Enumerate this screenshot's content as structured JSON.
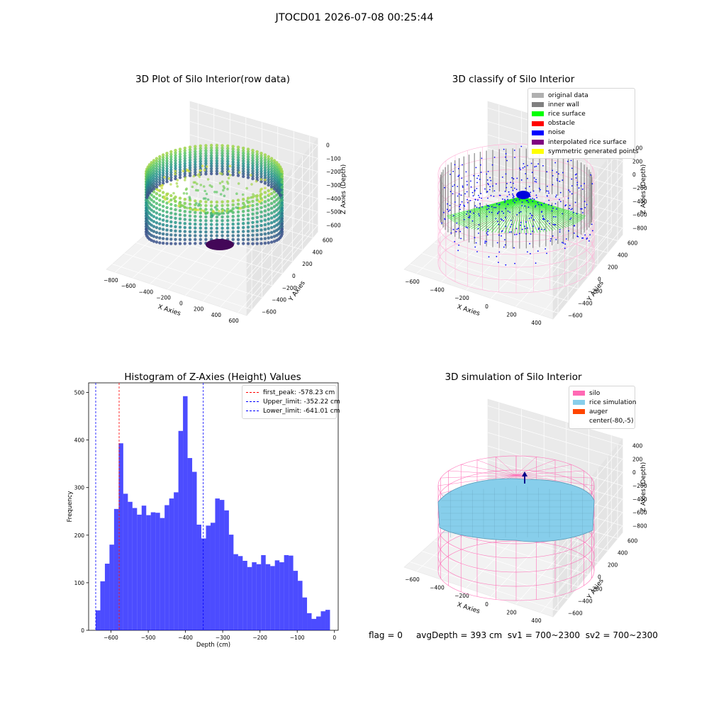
{
  "suptitle": "JTOCD01 2026-07-08 00:25:44",
  "chart_data": [
    {
      "type": "scatter",
      "title": "3D Plot of Silo Interior(row data)",
      "xlabel": "X Axies",
      "ylabel": "Y Axies",
      "zlabel": "Z Axies (Depth)",
      "x_ticks": [
        "−800",
        "−600",
        "−400",
        "−200",
        "0",
        "200",
        "400",
        "600"
      ],
      "y_ticks": [
        "−600",
        "−400",
        "−200",
        "0",
        "200",
        "400",
        "600"
      ],
      "z_ticks": [
        "0",
        "−100",
        "−200",
        "−300",
        "−400",
        "−500",
        "−600"
      ],
      "grid": true,
      "colormap": "viridis"
    },
    {
      "type": "scatter",
      "title": "3D classify of Silo Interior",
      "xlabel": "X Axies",
      "ylabel": "Y Axies",
      "zlabel": "Z Axies (Depth)",
      "x_ticks": [
        "−600",
        "−400",
        "−200",
        "0",
        "200",
        "400"
      ],
      "y_ticks": [
        "−600",
        "−400",
        "−200",
        "0",
        "200",
        "400",
        "600"
      ],
      "z_ticks": [
        "400",
        "200",
        "0",
        "−200",
        "−400",
        "−600",
        "−800"
      ],
      "grid": true,
      "legend_position": "top-right",
      "legend": [
        {
          "label": "original data",
          "color": "#b0b0b0"
        },
        {
          "label": "inner wall",
          "color": "#808080"
        },
        {
          "label": "rice surface",
          "color": "#00ff00"
        },
        {
          "label": "obstacle",
          "color": "#ff0000"
        },
        {
          "label": "noise",
          "color": "#0000ff"
        },
        {
          "label": "interpolated rice surface",
          "color": "#800080"
        },
        {
          "label": "symmetric generated points",
          "color": "#ffff00"
        }
      ]
    },
    {
      "type": "bar",
      "title": "Histogram of Z-Axies (Height) Values",
      "xlabel": "Depth (cm)",
      "ylabel": "Frequency",
      "xlim": [
        -660,
        10
      ],
      "ylim": [
        0,
        520
      ],
      "x_ticks": [
        -600,
        -500,
        -400,
        -300,
        -200,
        -100,
        0
      ],
      "y_ticks": [
        0,
        100,
        200,
        300,
        400,
        500
      ],
      "tick_labels_x": [
        "−600",
        "−500",
        "−400",
        "−300",
        "−200",
        "−100",
        "0"
      ],
      "tick_labels_y": [
        "0",
        "100",
        "200",
        "300",
        "400",
        "500"
      ],
      "bin_range": [
        -641.01,
        -12.0
      ],
      "bar_color": "#0000ff",
      "values": [
        42,
        103,
        140,
        180,
        255,
        393,
        287,
        270,
        257,
        243,
        262,
        242,
        248,
        247,
        236,
        263,
        277,
        290,
        419,
        492,
        362,
        333,
        222,
        193,
        220,
        226,
        277,
        274,
        252,
        201,
        160,
        156,
        146,
        133,
        143,
        139,
        158,
        139,
        135,
        147,
        143,
        158,
        157,
        125,
        104,
        69,
        36,
        24,
        29,
        40,
        43
      ],
      "legend_position": "top-right",
      "lines": [
        {
          "label": "first_peak: -578.23 cm",
          "x": -578.23,
          "color": "#ff0000"
        },
        {
          "label": "Upper_limit: -352.22 cm",
          "x": -352.22,
          "color": "#0000ff"
        },
        {
          "label": "Lower_limit: -641.01 cm",
          "x": -641.01,
          "color": "#0000ff"
        }
      ]
    },
    {
      "type": "area",
      "title": "3D simulation of Silo Interior",
      "xlabel": "X Axies",
      "ylabel": "Y Axies",
      "zlabel": "Z Axies (Depth)",
      "x_ticks": [
        "−600",
        "−400",
        "−200",
        "0",
        "200",
        "400"
      ],
      "y_ticks": [
        "−600",
        "−400",
        "−200",
        "0",
        "200",
        "400",
        "600"
      ],
      "z_ticks": [
        "400",
        "200",
        "0",
        "−200",
        "−400",
        "−600",
        "−800"
      ],
      "grid": true,
      "legend_position": "top-right",
      "legend": [
        {
          "label": "silo",
          "color": "#ff69b4"
        },
        {
          "label": "rice simulation",
          "color": "#87ceeb"
        },
        {
          "label": "auger",
          "color": "#ff4500"
        },
        {
          "label": "center(-80,-5)",
          "color": ""
        }
      ]
    }
  ],
  "status": {
    "flag": "flag = 0",
    "avg_depth": "avgDepth = 393 cm",
    "sv1": "sv1 = 700~2300",
    "sv2": "sv2 = 700~2300"
  }
}
